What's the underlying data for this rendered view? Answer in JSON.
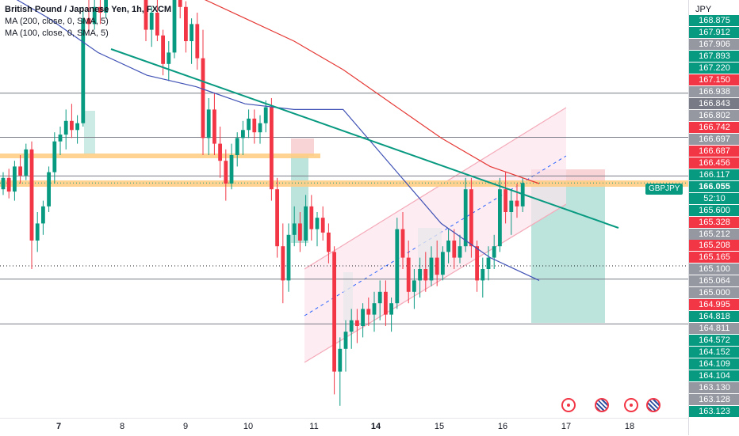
{
  "legend": {
    "title": "British Pound / Japanese Yen, 1h, FXCM",
    "ma200": "MA (200, close, 0, SMA, 5)",
    "ma100": "MA (100, close, 0, SMA, 5)"
  },
  "axis": {
    "unit": "JPY",
    "symbol_tag": "GBPJPY",
    "countdown": "52:10",
    "labels": [
      {
        "text": "168.875",
        "color": "#089981"
      },
      {
        "text": "167.912",
        "color": "#089981"
      },
      {
        "text": "167.906",
        "color": "#9598a1"
      },
      {
        "text": "167.893",
        "color": "#089981"
      },
      {
        "text": "167.220",
        "color": "#089981"
      },
      {
        "text": "167.150",
        "color": "#f23645"
      },
      {
        "text": "166.938",
        "color": "#9598a1"
      },
      {
        "text": "166.843",
        "color": "#787b86"
      },
      {
        "text": "166.802",
        "color": "#9598a1"
      },
      {
        "text": "166.742",
        "color": "#f23645"
      },
      {
        "text": "166.697",
        "color": "#9598a1"
      },
      {
        "text": "166.687",
        "color": "#f23645"
      },
      {
        "text": "166.456",
        "color": "#f23645"
      },
      {
        "text": "166.117",
        "color": "#089981"
      },
      {
        "text": "166.055",
        "color": "#089981",
        "current": true
      },
      {
        "text": "52:10",
        "color": "#089981"
      },
      {
        "text": "165.600",
        "color": "#089981"
      },
      {
        "text": "165.328",
        "color": "#f23645"
      },
      {
        "text": "165.212",
        "color": "#9598a1"
      },
      {
        "text": "165.208",
        "color": "#f23645"
      },
      {
        "text": "165.165",
        "color": "#f23645"
      },
      {
        "text": "165.100",
        "color": "#9598a1"
      },
      {
        "text": "165.064",
        "color": "#9598a1"
      },
      {
        "text": "165.000",
        "color": "#9598a1"
      },
      {
        "text": "164.995",
        "color": "#f23645"
      },
      {
        "text": "164.818",
        "color": "#089981"
      },
      {
        "text": "164.811",
        "color": "#9598a1"
      },
      {
        "text": "164.572",
        "color": "#089981"
      },
      {
        "text": "164.152",
        "color": "#089981"
      },
      {
        "text": "164.109",
        "color": "#089981"
      },
      {
        "text": "164.104",
        "color": "#089981"
      },
      {
        "text": "163.130",
        "color": "#9598a1"
      },
      {
        "text": "163.128",
        "color": "#9598a1"
      },
      {
        "text": "163.123",
        "color": "#089981"
      }
    ]
  },
  "x_labels": [
    {
      "text": "7",
      "bold": true
    },
    {
      "text": "8",
      "bold": false
    },
    {
      "text": "9",
      "bold": false
    },
    {
      "text": "10",
      "bold": false
    },
    {
      "text": "11",
      "bold": false
    },
    {
      "text": "14",
      "bold": true
    },
    {
      "text": "15",
      "bold": false
    },
    {
      "text": "16",
      "bold": false
    },
    {
      "text": "17",
      "bold": false
    },
    {
      "text": "18",
      "bold": false
    }
  ],
  "events": [
    "red",
    "uk",
    "red",
    "uk"
  ],
  "chart_data": {
    "type": "candlestick",
    "title": "British Pound / Japanese Yen, 1h, FXCM",
    "symbol": "GBPJPY",
    "last_price": 166.055,
    "x_ticks": [
      "7",
      "8",
      "9",
      "10",
      "11",
      "14",
      "15",
      "16",
      "17",
      "18"
    ],
    "candles_approx": [
      [
        166.0,
        166.15,
        165.95,
        166.1
      ],
      [
        166.1,
        166.18,
        165.92,
        165.98
      ],
      [
        165.98,
        166.25,
        165.9,
        166.2
      ],
      [
        166.2,
        166.3,
        166.05,
        166.12
      ],
      [
        166.12,
        166.4,
        166.08,
        166.35
      ],
      [
        166.35,
        166.42,
        165.3,
        165.55
      ],
      [
        165.55,
        165.8,
        165.45,
        165.7
      ],
      [
        165.7,
        165.9,
        165.6,
        165.85
      ],
      [
        165.85,
        166.2,
        165.8,
        166.15
      ],
      [
        166.15,
        166.5,
        166.05,
        166.42
      ],
      [
        166.42,
        166.55,
        166.3,
        166.48
      ],
      [
        166.48,
        166.7,
        166.35,
        166.6
      ],
      [
        166.6,
        166.75,
        166.45,
        166.52
      ],
      [
        166.52,
        166.65,
        166.4,
        166.58
      ],
      [
        166.58,
        167.6,
        166.55,
        167.5
      ],
      [
        167.5,
        167.7,
        167.35,
        167.45
      ],
      [
        167.45,
        167.8,
        167.4,
        167.6
      ],
      [
        167.6,
        167.7,
        167.45,
        167.55
      ],
      [
        167.55,
        168.4,
        167.5,
        168.3
      ],
      [
        168.3,
        168.55,
        168.15,
        168.45
      ],
      [
        168.45,
        168.52,
        168.25,
        168.3
      ],
      [
        168.3,
        168.5,
        168.2,
        168.42
      ],
      [
        168.42,
        168.55,
        168.3,
        168.35
      ],
      [
        168.35,
        168.4,
        168.0,
        168.1
      ],
      [
        168.1,
        168.2,
        167.7,
        167.8
      ],
      [
        167.8,
        167.95,
        167.3,
        167.4
      ],
      [
        167.4,
        167.6,
        167.25,
        167.55
      ],
      [
        167.55,
        167.7,
        167.3,
        167.35
      ],
      [
        167.35,
        167.4,
        167.0,
        167.1
      ],
      [
        167.1,
        167.3,
        166.95,
        167.2
      ],
      [
        167.2,
        167.85,
        167.15,
        167.75
      ],
      [
        167.75,
        167.9,
        167.5,
        167.6
      ],
      [
        167.6,
        167.65,
        167.2,
        167.3
      ],
      [
        167.3,
        167.5,
        167.1,
        167.45
      ],
      [
        167.45,
        167.55,
        167.05,
        167.15
      ],
      [
        167.15,
        167.4,
        166.3,
        166.45
      ],
      [
        166.45,
        166.8,
        166.3,
        166.7
      ],
      [
        166.7,
        166.85,
        166.3,
        166.4
      ],
      [
        166.4,
        166.55,
        166.1,
        166.25
      ],
      [
        166.25,
        166.35,
        165.9,
        166.05
      ],
      [
        166.05,
        166.4,
        166.0,
        166.3
      ],
      [
        166.3,
        166.5,
        166.2,
        166.45
      ],
      [
        166.45,
        166.6,
        166.3,
        166.52
      ],
      [
        166.52,
        166.7,
        166.45,
        166.62
      ],
      [
        166.62,
        166.7,
        166.4,
        166.5
      ],
      [
        166.5,
        166.65,
        166.4,
        166.58
      ],
      [
        166.58,
        166.78,
        166.5,
        166.72
      ],
      [
        166.72,
        166.8,
        165.9,
        166.0
      ],
      [
        166.0,
        166.1,
        165.4,
        165.5
      ],
      [
        165.5,
        165.7,
        165.0,
        165.2
      ],
      [
        165.2,
        165.7,
        165.1,
        165.6
      ],
      [
        165.6,
        165.85,
        165.5,
        165.7
      ],
      [
        165.7,
        165.8,
        165.45,
        165.55
      ],
      [
        165.55,
        165.95,
        165.5,
        165.85
      ],
      [
        165.85,
        165.95,
        165.55,
        165.65
      ],
      [
        165.65,
        165.8,
        165.5,
        165.75
      ],
      [
        165.75,
        165.85,
        165.55,
        165.62
      ],
      [
        165.62,
        165.7,
        165.35,
        165.45
      ],
      [
        165.45,
        165.5,
        164.2,
        164.4
      ],
      [
        164.4,
        164.7,
        164.1,
        164.6
      ],
      [
        164.6,
        164.85,
        164.4,
        164.75
      ],
      [
        164.75,
        164.95,
        164.6,
        164.85
      ],
      [
        164.85,
        164.95,
        164.65,
        164.8
      ],
      [
        164.8,
        165.0,
        164.7,
        164.95
      ],
      [
        164.95,
        165.05,
        164.8,
        164.9
      ],
      [
        164.9,
        165.1,
        164.75,
        165.0
      ],
      [
        165.0,
        165.2,
        164.85,
        165.1
      ],
      [
        165.1,
        165.2,
        164.8,
        164.9
      ],
      [
        164.9,
        165.05,
        164.75,
        165.0
      ],
      [
        165.0,
        165.75,
        164.95,
        165.65
      ],
      [
        165.65,
        165.8,
        165.3,
        165.4
      ],
      [
        165.4,
        165.55,
        165.0,
        165.1
      ],
      [
        165.1,
        165.3,
        164.95,
        165.2
      ],
      [
        165.2,
        165.4,
        165.05,
        165.3
      ],
      [
        165.3,
        165.45,
        165.1,
        165.2
      ],
      [
        165.2,
        165.5,
        165.15,
        165.4
      ],
      [
        165.4,
        165.55,
        165.15,
        165.25
      ],
      [
        165.25,
        165.5,
        165.2,
        165.45
      ],
      [
        165.45,
        165.65,
        165.35,
        165.55
      ],
      [
        165.55,
        165.65,
        165.3,
        165.4
      ],
      [
        165.4,
        165.6,
        165.35,
        165.5
      ],
      [
        165.5,
        166.1,
        165.45,
        166.0
      ],
      [
        166.0,
        166.1,
        165.4,
        165.5
      ],
      [
        165.5,
        165.55,
        165.1,
        165.2
      ],
      [
        165.2,
        165.4,
        165.05,
        165.3
      ],
      [
        165.3,
        165.5,
        165.2,
        165.4
      ],
      [
        165.4,
        165.6,
        165.3,
        165.5
      ],
      [
        165.5,
        166.1,
        165.45,
        166.0
      ],
      [
        166.0,
        166.15,
        165.7,
        165.8
      ],
      [
        165.8,
        166.0,
        165.6,
        165.9
      ],
      [
        165.9,
        166.05,
        165.75,
        165.85
      ],
      [
        165.85,
        166.1,
        165.8,
        166.055
      ]
    ],
    "ma200_approx": [
      168.1,
      168.0,
      167.95,
      167.85,
      167.7,
      167.5,
      167.3,
      167.05,
      166.75,
      166.45,
      166.2,
      166.05
    ],
    "ma100_approx": [
      167.75,
      167.5,
      167.2,
      167.0,
      166.9,
      166.75,
      166.7,
      166.7,
      166.2,
      165.7,
      165.4,
      165.2
    ],
    "horizontal_levels": [
      166.843,
      166.456,
      166.117,
      165.212,
      164.818
    ],
    "dotted_levels": [
      165.328,
      166.055
    ]
  }
}
